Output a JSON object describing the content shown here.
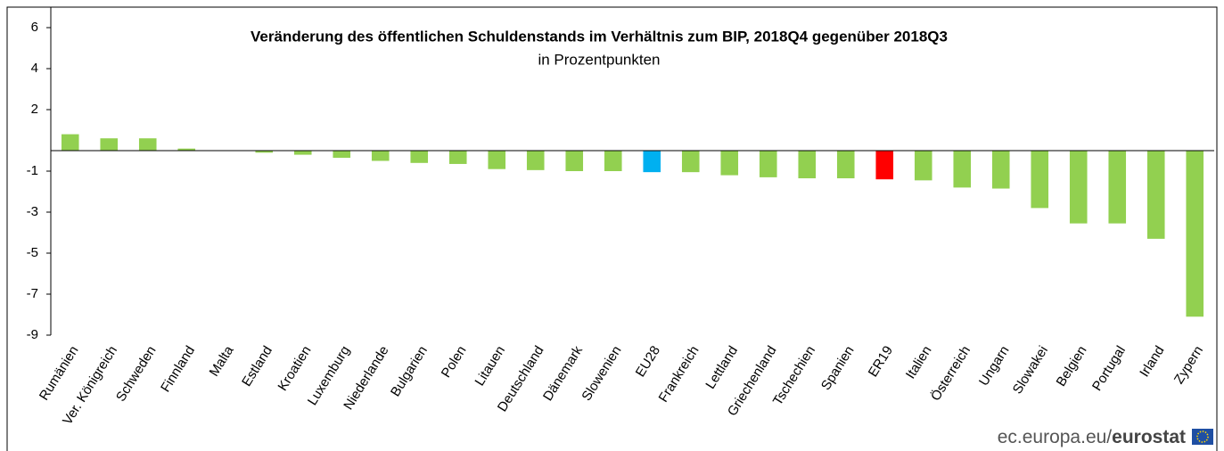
{
  "chart_data": {
    "type": "bar",
    "title": "Veränderung des öffentlichen Schuldenstands im Verhältnis zum BIP, 2018Q4 gegenüber 2018Q3",
    "subtitle": "in Prozentpunkten",
    "categories": [
      "Rumänien",
      "Ver. Königreich",
      "Schweden",
      "Finnland",
      "Malta",
      "Estland",
      "Kroatien",
      "Luxemburg",
      "Niederlande",
      "Bulgarien",
      "Polen",
      "Litauen",
      "Deutschland",
      "Dänemark",
      "Slowenien",
      "EU28",
      "Frankreich",
      "Lettland",
      "Griechenland",
      "Tschechien",
      "Spanien",
      "ER19",
      "Italien",
      "Österreich",
      "Ungarn",
      "Slowakei",
      "Belgien",
      "Portugal",
      "Irland",
      "Zypern"
    ],
    "values": [
      0.8,
      0.6,
      0.6,
      0.1,
      0,
      -0.1,
      -0.2,
      -0.35,
      -0.5,
      -0.6,
      -0.65,
      -0.9,
      -0.95,
      -1.0,
      -1.0,
      -1.05,
      -1.05,
      -1.2,
      -1.3,
      -1.35,
      -1.35,
      -1.4,
      -1.45,
      -1.8,
      -1.85,
      -2.8,
      -3.55,
      -3.55,
      -4.3,
      -8.1
    ],
    "colors": [
      "#92d050",
      "#92d050",
      "#92d050",
      "#92d050",
      "#92d050",
      "#92d050",
      "#92d050",
      "#92d050",
      "#92d050",
      "#92d050",
      "#92d050",
      "#92d050",
      "#92d050",
      "#92d050",
      "#92d050",
      "#00b0f0",
      "#92d050",
      "#92d050",
      "#92d050",
      "#92d050",
      "#92d050",
      "#ff0000",
      "#92d050",
      "#92d050",
      "#92d050",
      "#92d050",
      "#92d050",
      "#92d050",
      "#92d050",
      "#92d050"
    ],
    "ylim": [
      -9,
      7
    ],
    "yticks": [
      6,
      4,
      2,
      -1,
      -3,
      -5,
      -7,
      -9
    ],
    "source": {
      "prefix": "ec.europa.eu/",
      "brand": "eurostat"
    }
  }
}
